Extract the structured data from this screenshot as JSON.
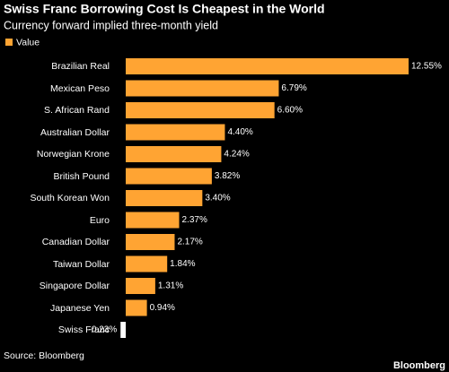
{
  "chart_data": {
    "type": "bar",
    "orientation": "horizontal",
    "title": "Swiss Franc Borrowing Cost Is Cheapest in the World",
    "subtitle": "Currency forward implied three-month yield",
    "legend": "Value",
    "categories": [
      "Brazilian Real",
      "Mexican Peso",
      "S. African Rand",
      "Australian Dollar",
      "Norwegian Krone",
      "British Pound",
      "South Korean Won",
      "Euro",
      "Canadian Dollar",
      "Taiwan Dollar",
      "Singapore Dollar",
      "Japanese Yen",
      "Swiss Franc"
    ],
    "values": [
      12.55,
      6.79,
      6.6,
      4.4,
      4.24,
      3.82,
      3.4,
      2.37,
      2.17,
      1.84,
      1.31,
      0.94,
      -0.23
    ],
    "value_labels": [
      "12.55%",
      "6.79%",
      "6.60%",
      "4.40%",
      "4.24%",
      "3.82%",
      "3.40%",
      "2.37%",
      "2.17%",
      "1.84%",
      "1.31%",
      "0.94%",
      "-0.23%"
    ],
    "color": "#ffa433",
    "negative_color": "#ffffff",
    "source": "Source: Bloomberg",
    "brand": "Bloomberg"
  }
}
